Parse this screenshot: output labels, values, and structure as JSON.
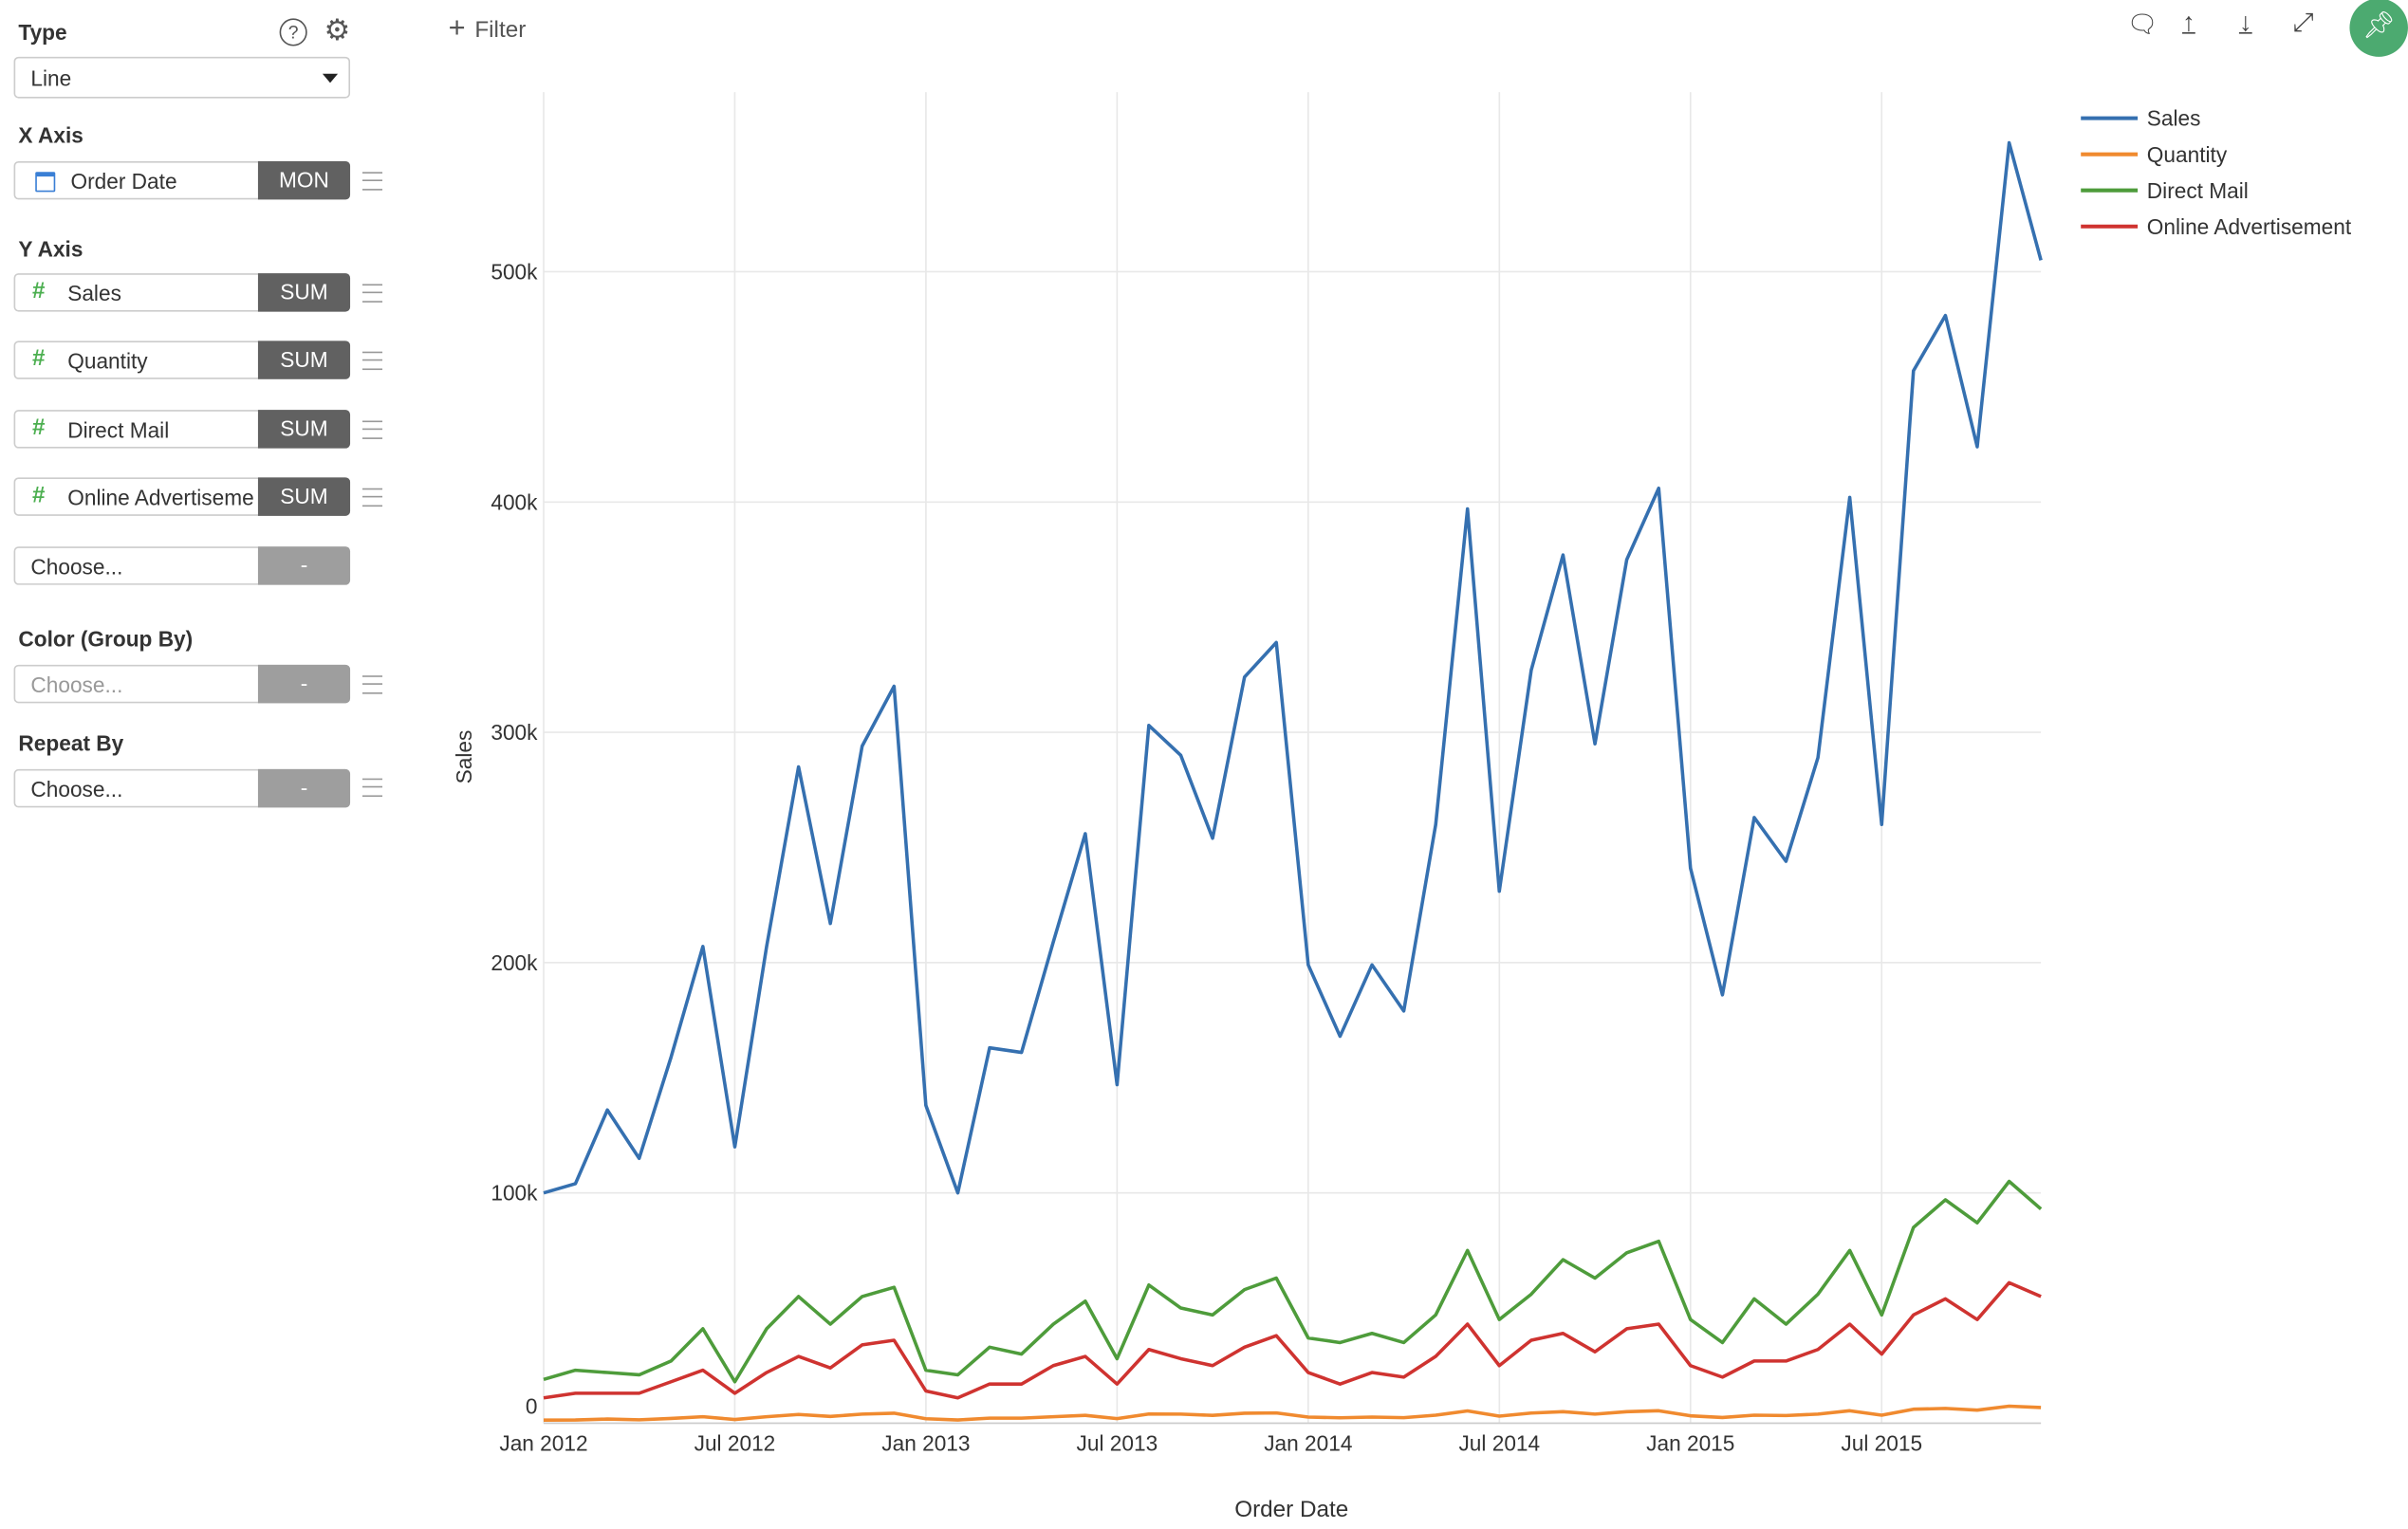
{
  "sidebar": {
    "type_label": "Type",
    "type_value": "Line",
    "x_axis_label": "X Axis",
    "x_field": {
      "name": "Order Date",
      "agg": "MON",
      "icon": "calendar-icon"
    },
    "y_axis_label": "Y Axis",
    "y_fields": [
      {
        "name": "Sales",
        "agg": "SUM",
        "icon": "#"
      },
      {
        "name": "Quantity",
        "agg": "SUM",
        "icon": "#"
      },
      {
        "name": "Direct Mail",
        "agg": "SUM",
        "icon": "#"
      },
      {
        "name": "Online Advertisement",
        "agg": "SUM",
        "icon": "#"
      }
    ],
    "choose_placeholder": "Choose...",
    "dash": "-",
    "color_label": "Color (Group By)",
    "repeat_label": "Repeat By"
  },
  "toolbar": {
    "filter_label": "Filter",
    "plus": "+"
  },
  "colors": {
    "Sales": "#3570b0",
    "Quantity": "#f08a2f",
    "Direct Mail": "#4e9c3b",
    "Online Advertisement": "#cf3330",
    "pin": "#4caa70"
  },
  "chart_data": {
    "type": "line",
    "xlabel": "Order Date",
    "ylabel": "Sales",
    "ylim": [
      0,
      570000
    ],
    "grid": true,
    "legend": "top-right",
    "x_start": "Jan 2012",
    "x_ticks": [
      "Jan 2012",
      "Jul 2012",
      "Jan 2013",
      "Jul 2013",
      "Jan 2014",
      "Jul 2014",
      "Jan 2015",
      "Jul 2015"
    ],
    "y_ticks": [
      "0",
      "100k",
      "200k",
      "300k",
      "400k",
      "500k"
    ],
    "series": [
      {
        "name": "Sales",
        "values": [
          100000,
          104000,
          136000,
          115000,
          159000,
          207000,
          120000,
          207000,
          285000,
          217000,
          294000,
          320000,
          138000,
          100000,
          163000,
          161000,
          209000,
          256000,
          147000,
          303000,
          290000,
          254000,
          324000,
          339000,
          199000,
          168000,
          199000,
          179000,
          260000,
          397000,
          231000,
          327000,
          377000,
          295000,
          375000,
          406000,
          241000,
          186000,
          263000,
          244000,
          289000,
          402000,
          260000,
          457000,
          481000,
          424000,
          556000,
          505000
        ]
      },
      {
        "name": "Quantity",
        "values": [
          1300,
          1400,
          1800,
          1500,
          2100,
          2800,
          1600,
          2800,
          3800,
          2900,
          3900,
          4300,
          1900,
          1400,
          2200,
          2200,
          2800,
          3400,
          2000,
          4000,
          3900,
          3400,
          4300,
          4500,
          2700,
          2300,
          2700,
          2400,
          3500,
          5300,
          3100,
          4400,
          5000,
          3900,
          5000,
          5400,
          3200,
          2500,
          3500,
          3300,
          3900,
          5400,
          3500,
          6100,
          6400,
          5700,
          7400,
          6800
        ]
      },
      {
        "name": "Direct Mail",
        "values": [
          19000,
          23000,
          22000,
          21000,
          27000,
          41000,
          18000,
          41000,
          55000,
          43000,
          55000,
          59000,
          23000,
          21000,
          33000,
          30000,
          43000,
          53000,
          28000,
          60000,
          50000,
          47000,
          58000,
          63000,
          37000,
          35000,
          39000,
          35000,
          47000,
          75000,
          45000,
          56000,
          71000,
          63000,
          74000,
          79000,
          45000,
          35000,
          54000,
          43000,
          56000,
          75000,
          47000,
          85000,
          97000,
          87000,
          105000,
          93000
        ]
      },
      {
        "name": "Online Advertisement",
        "values": [
          11000,
          13000,
          13000,
          13000,
          18000,
          23000,
          13000,
          22000,
          29000,
          24000,
          34000,
          36000,
          14000,
          11000,
          17000,
          17000,
          25000,
          29000,
          17000,
          32000,
          28000,
          25000,
          33000,
          38000,
          22000,
          17000,
          22000,
          20000,
          29000,
          43000,
          25000,
          36000,
          39000,
          31000,
          41000,
          43000,
          25000,
          20000,
          27000,
          27000,
          32000,
          43000,
          30000,
          47000,
          54000,
          45000,
          61000,
          55000
        ]
      }
    ]
  }
}
